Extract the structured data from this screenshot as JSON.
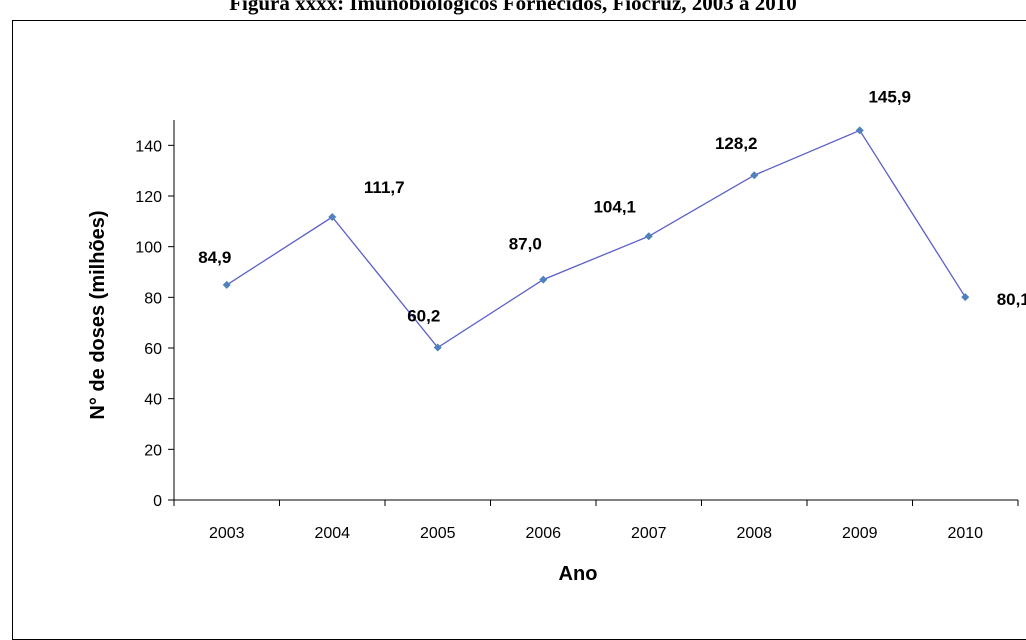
{
  "chart_data": {
    "type": "line",
    "title": "Figura xxxx: Imunobiológicos Fornecidos, Fiocruz, 2003 a 2010",
    "xlabel": "Ano",
    "ylabel": "N° de doses (milhões)",
    "categories": [
      "2003",
      "2004",
      "2005",
      "2006",
      "2007",
      "2008",
      "2009",
      "2010"
    ],
    "series": [
      {
        "values": [
          84.9,
          111.7,
          60.2,
          87.0,
          104.1,
          128.2,
          145.9,
          80.1
        ],
        "labels": [
          "84,9",
          "111,7",
          "60,2",
          "87,0",
          "104,1",
          "128,2",
          "145,9",
          "80,1"
        ],
        "color": "#5b5fc7",
        "marker_color": "#4f81bd"
      }
    ],
    "ylim": [
      0,
      150
    ],
    "yticks": [
      "0",
      "20",
      "40",
      "60",
      "80",
      "100",
      "120",
      "140"
    ],
    "ytick_values": [
      0,
      20,
      40,
      60,
      80,
      100,
      120,
      140
    ],
    "grid": false,
    "legend": "none"
  }
}
